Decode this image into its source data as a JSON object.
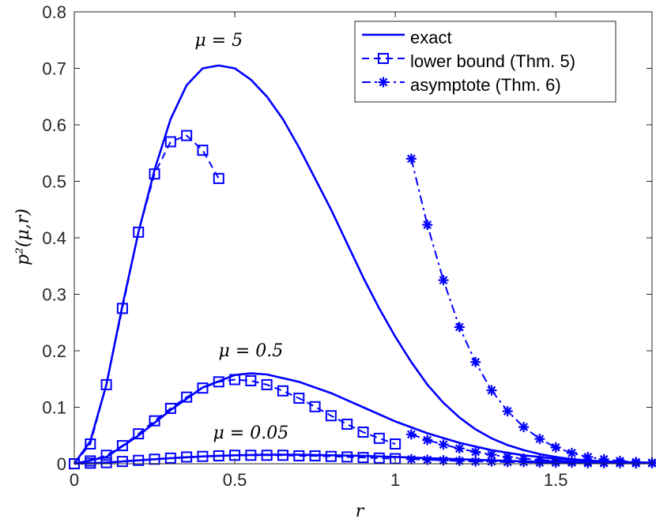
{
  "chart_data": {
    "type": "line",
    "xlabel": "r",
    "ylabel": "p²(μ,r)",
    "xlim": [
      0,
      1.8
    ],
    "ylim": [
      0,
      0.8
    ],
    "xticks": [
      0,
      0.5,
      1,
      1.5
    ],
    "xtick_labels": [
      "0",
      "0.5",
      "1",
      "1.5"
    ],
    "yticks": [
      0,
      0.1,
      0.2,
      0.3,
      0.4,
      0.5,
      0.6,
      0.7,
      0.8
    ],
    "ytick_labels": [
      "0",
      "0.1",
      "0.2",
      "0.3",
      "0.4",
      "0.5",
      "0.6",
      "0.7",
      "0.8"
    ],
    "grid": false,
    "legend_position": "top-right",
    "color": "#0000ff",
    "legend": [
      {
        "label": "exact",
        "style": "solid"
      },
      {
        "label": "lower bound (Thm. 5)",
        "style": "dashed",
        "marker": "square"
      },
      {
        "label": "asymptote (Thm. 6)",
        "style": "dashdot",
        "marker": "asterisk"
      }
    ],
    "annotations": [
      {
        "text": "μ = 5",
        "x": 0.45,
        "y": 0.74
      },
      {
        "text": "μ = 0.5",
        "x": 0.55,
        "y": 0.19
      },
      {
        "text": "μ = 0.05",
        "x": 0.55,
        "y": 0.045
      }
    ],
    "series": [
      {
        "kind": "exact",
        "mu": "5",
        "x": [
          0,
          0.05,
          0.1,
          0.15,
          0.2,
          0.25,
          0.3,
          0.35,
          0.4,
          0.45,
          0.5,
          0.55,
          0.6,
          0.65,
          0.7,
          0.75,
          0.8,
          0.85,
          0.9,
          0.95,
          1.0,
          1.05,
          1.1,
          1.15,
          1.2,
          1.25,
          1.3,
          1.35,
          1.4,
          1.45,
          1.5,
          1.55,
          1.6,
          1.65,
          1.7,
          1.75,
          1.8
        ],
        "y": [
          0,
          0.04,
          0.14,
          0.28,
          0.41,
          0.52,
          0.61,
          0.67,
          0.7,
          0.705,
          0.7,
          0.68,
          0.65,
          0.61,
          0.56,
          0.505,
          0.45,
          0.39,
          0.33,
          0.275,
          0.225,
          0.18,
          0.14,
          0.108,
          0.082,
          0.061,
          0.045,
          0.033,
          0.024,
          0.017,
          0.012,
          0.008,
          0.006,
          0.004,
          0.003,
          0.002,
          0.001
        ]
      },
      {
        "kind": "exact",
        "mu": "0.5",
        "x": [
          0,
          0.1,
          0.2,
          0.3,
          0.4,
          0.5,
          0.55,
          0.6,
          0.7,
          0.8,
          0.9,
          1.0,
          1.1,
          1.2,
          1.3,
          1.4,
          1.5,
          1.6,
          1.7,
          1.8
        ],
        "y": [
          0,
          0.012,
          0.05,
          0.095,
          0.135,
          0.157,
          0.16,
          0.158,
          0.145,
          0.125,
          0.1,
          0.075,
          0.054,
          0.037,
          0.024,
          0.015,
          0.009,
          0.005,
          0.003,
          0.002
        ]
      },
      {
        "kind": "exact",
        "mu": "0.05",
        "x": [
          0,
          0.1,
          0.2,
          0.3,
          0.4,
          0.5,
          0.6,
          0.7,
          0.8,
          0.9,
          1.0,
          1.1,
          1.2,
          1.3,
          1.4,
          1.5,
          1.6,
          1.7,
          1.8
        ],
        "y": [
          0,
          0.002,
          0.006,
          0.01,
          0.013,
          0.015,
          0.016,
          0.016,
          0.015,
          0.014,
          0.012,
          0.01,
          0.008,
          0.006,
          0.004,
          0.003,
          0.002,
          0.001,
          0.001
        ]
      },
      {
        "kind": "lower",
        "mu": "5",
        "x": [
          0,
          0.05,
          0.1,
          0.15,
          0.2,
          0.25,
          0.3,
          0.35,
          0.4,
          0.45
        ],
        "y": [
          0,
          0.035,
          0.14,
          0.275,
          0.41,
          0.513,
          0.57,
          0.581,
          0.555,
          0.505
        ]
      },
      {
        "kind": "lower",
        "mu": "0.5",
        "x": [
          0,
          0.05,
          0.1,
          0.15,
          0.2,
          0.25,
          0.3,
          0.35,
          0.4,
          0.45,
          0.5,
          0.55,
          0.6,
          0.65,
          0.7,
          0.75,
          0.8,
          0.85,
          0.9,
          0.95,
          1.0
        ],
        "y": [
          0,
          0.005,
          0.015,
          0.032,
          0.053,
          0.076,
          0.098,
          0.118,
          0.134,
          0.145,
          0.149,
          0.147,
          0.14,
          0.129,
          0.116,
          0.101,
          0.085,
          0.07,
          0.056,
          0.045,
          0.035
        ]
      },
      {
        "kind": "lower",
        "mu": "0.05",
        "x": [
          0,
          0.05,
          0.1,
          0.15,
          0.2,
          0.25,
          0.3,
          0.35,
          0.4,
          0.45,
          0.5,
          0.55,
          0.6,
          0.65,
          0.7,
          0.75,
          0.8,
          0.85,
          0.9,
          0.95,
          1.0
        ],
        "y": [
          0,
          0.001,
          0.002,
          0.004,
          0.006,
          0.008,
          0.01,
          0.012,
          0.013,
          0.014,
          0.015,
          0.015,
          0.015,
          0.015,
          0.014,
          0.014,
          0.013,
          0.012,
          0.011,
          0.01,
          0.009
        ]
      },
      {
        "kind": "asymptote",
        "mu": "5",
        "x": [
          1.05,
          1.1,
          1.15,
          1.2,
          1.25,
          1.3,
          1.35,
          1.4,
          1.45,
          1.5,
          1.55,
          1.6,
          1.65,
          1.7,
          1.75,
          1.8
        ],
        "y": [
          0.54,
          0.423,
          0.325,
          0.242,
          0.18,
          0.13,
          0.093,
          0.065,
          0.044,
          0.029,
          0.019,
          0.012,
          0.008,
          0.005,
          0.003,
          0.002
        ]
      },
      {
        "kind": "asymptote",
        "mu": "0.5",
        "x": [
          1.05,
          1.1,
          1.15,
          1.2,
          1.25,
          1.3,
          1.35,
          1.4,
          1.45,
          1.5,
          1.55,
          1.6,
          1.65,
          1.7,
          1.75,
          1.8
        ],
        "y": [
          0.052,
          0.042,
          0.034,
          0.027,
          0.021,
          0.016,
          0.012,
          0.009,
          0.007,
          0.005,
          0.004,
          0.003,
          0.002,
          0.002,
          0.001,
          0.001
        ]
      },
      {
        "kind": "asymptote",
        "mu": "0.05",
        "x": [
          1.05,
          1.1,
          1.15,
          1.2,
          1.25,
          1.3,
          1.35,
          1.4,
          1.45,
          1.5,
          1.55,
          1.6,
          1.65,
          1.7,
          1.75,
          1.8
        ],
        "y": [
          0.008,
          0.007,
          0.006,
          0.005,
          0.004,
          0.004,
          0.003,
          0.003,
          0.002,
          0.002,
          0.002,
          0.001,
          0.001,
          0.001,
          0.001,
          0.001
        ]
      }
    ]
  }
}
